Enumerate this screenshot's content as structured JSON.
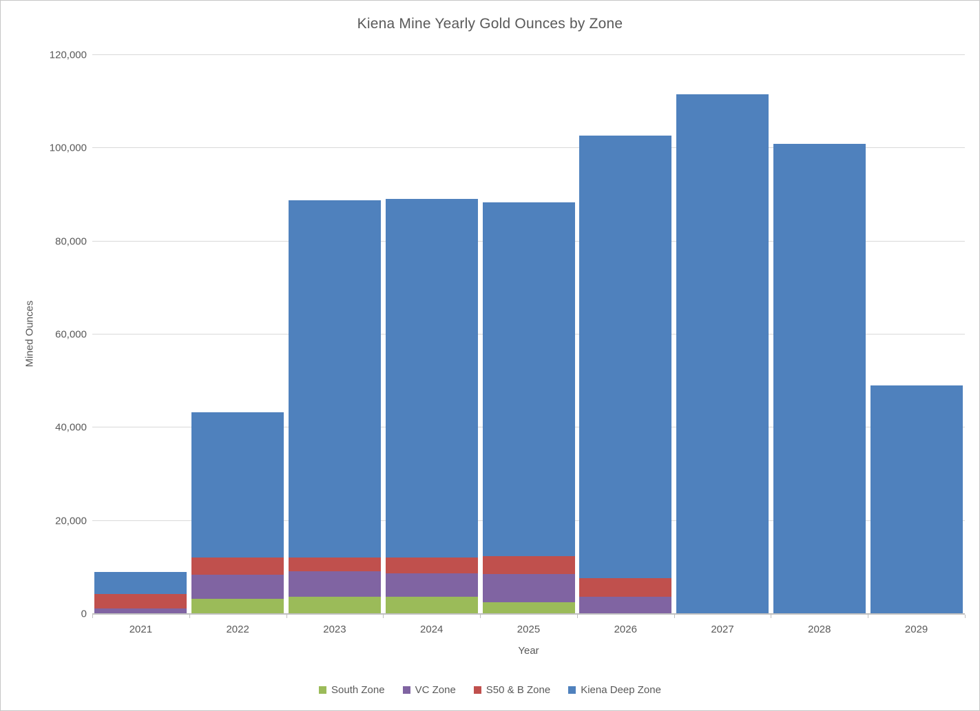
{
  "chart_data": {
    "type": "bar",
    "stacked": true,
    "title": "Kiena Mine Yearly Gold Ounces by Zone",
    "xlabel": "Year",
    "ylabel": "Mined Ounces",
    "categories": [
      "2021",
      "2022",
      "2023",
      "2024",
      "2025",
      "2026",
      "2027",
      "2028",
      "2029"
    ],
    "series": [
      {
        "name": "South Zone",
        "color": "#9bbb59",
        "values": [
          0,
          3100,
          3600,
          3600,
          2300,
          0,
          0,
          0,
          0
        ]
      },
      {
        "name": "VC Zone",
        "color": "#8064a2",
        "values": [
          1000,
          5200,
          5400,
          5000,
          6100,
          3600,
          0,
          0,
          0
        ]
      },
      {
        "name": "S50 & B Zone",
        "color": "#c0504d",
        "values": [
          3100,
          3600,
          3000,
          3300,
          3900,
          4000,
          0,
          0,
          0
        ]
      },
      {
        "name": "Kiena Deep Zone",
        "color": "#4f81bd",
        "values": [
          4800,
          31200,
          76600,
          77000,
          76000,
          94900,
          111500,
          100800,
          48900
        ]
      }
    ],
    "totals": [
      8900,
      43100,
      88600,
      88900,
      88300,
      102500,
      111500,
      100800,
      48900
    ],
    "ylim": [
      0,
      120000
    ],
    "ytick_step": 20000,
    "yticks": [
      0,
      20000,
      40000,
      60000,
      80000,
      100000,
      120000
    ],
    "ytick_labels": [
      "0",
      "20,000",
      "40,000",
      "60,000",
      "80,000",
      "100,000",
      "120,000"
    ],
    "grid": true,
    "legend_position": "bottom",
    "colors": {
      "text": "#595959",
      "gridline": "#d9d9d9",
      "axis": "#bfbfbf",
      "background": "#ffffff"
    }
  }
}
